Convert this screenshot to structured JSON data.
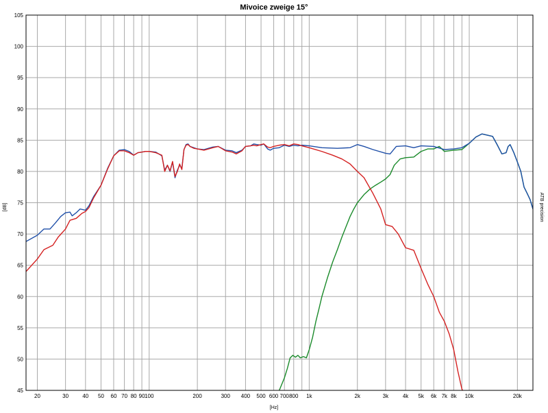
{
  "chart_data": {
    "type": "line",
    "title": "Mivoice zweige 15°",
    "xlabel": "[Hz]",
    "ylabel": "[dB]",
    "side_label": "ATB precision",
    "x_scale": "log",
    "xlim": [
      17,
      25000
    ],
    "ylim": [
      45,
      105
    ],
    "grid": true,
    "x_ticks": [
      {
        "value": 20,
        "label": "20"
      },
      {
        "value": 30,
        "label": "30"
      },
      {
        "value": 40,
        "label": "40"
      },
      {
        "value": 50,
        "label": "50"
      },
      {
        "value": 60,
        "label": "60"
      },
      {
        "value": 70,
        "label": "70"
      },
      {
        "value": 80,
        "label": "80"
      },
      {
        "value": 90,
        "label": "90"
      },
      {
        "value": 100,
        "label": "100"
      },
      {
        "value": 200,
        "label": "200"
      },
      {
        "value": 300,
        "label": "300"
      },
      {
        "value": 400,
        "label": "400"
      },
      {
        "value": 500,
        "label": "500"
      },
      {
        "value": 600,
        "label": "600"
      },
      {
        "value": 700,
        "label": "700"
      },
      {
        "value": 800,
        "label": "800"
      },
      {
        "value": 1000,
        "label": "1k"
      },
      {
        "value": 2000,
        "label": "2k"
      },
      {
        "value": 3000,
        "label": "3k"
      },
      {
        "value": 4000,
        "label": "4k"
      },
      {
        "value": 5000,
        "label": "5k"
      },
      {
        "value": 6000,
        "label": "6k"
      },
      {
        "value": 7000,
        "label": "7k"
      },
      {
        "value": 8000,
        "label": "8k"
      },
      {
        "value": 10000,
        "label": "10k"
      },
      {
        "value": 20000,
        "label": "20k"
      }
    ],
    "x_grid": [
      20,
      30,
      40,
      50,
      60,
      70,
      80,
      90,
      100,
      200,
      300,
      400,
      500,
      600,
      700,
      800,
      900,
      1000,
      2000,
      3000,
      4000,
      5000,
      6000,
      7000,
      8000,
      9000,
      10000,
      20000
    ],
    "y_ticks": [
      45,
      50,
      55,
      60,
      65,
      70,
      75,
      80,
      85,
      90,
      95,
      100,
      105
    ],
    "series": [
      {
        "color": "#1f4fa8",
        "points": [
          [
            17,
            68.8
          ],
          [
            20,
            69.8
          ],
          [
            22,
            70.8
          ],
          [
            24,
            70.8
          ],
          [
            26,
            71.8
          ],
          [
            28,
            72.8
          ],
          [
            30,
            73.4
          ],
          [
            32,
            73.5
          ],
          [
            33,
            72.9
          ],
          [
            35,
            73.4
          ],
          [
            37,
            74.0
          ],
          [
            40,
            73.8
          ],
          [
            42,
            74.5
          ],
          [
            45,
            76.0
          ],
          [
            50,
            77.8
          ],
          [
            55,
            80.5
          ],
          [
            60,
            82.5
          ],
          [
            65,
            83.4
          ],
          [
            70,
            83.5
          ],
          [
            75,
            83.2
          ],
          [
            80,
            82.6
          ],
          [
            85,
            83.0
          ],
          [
            90,
            83.1
          ],
          [
            95,
            83.2
          ],
          [
            100,
            83.2
          ],
          [
            110,
            83.1
          ],
          [
            120,
            82.5
          ],
          [
            125,
            80.2
          ],
          [
            130,
            81.0
          ],
          [
            135,
            80.0
          ],
          [
            140,
            81.5
          ],
          [
            145,
            79.0
          ],
          [
            150,
            80.2
          ],
          [
            155,
            81.0
          ],
          [
            160,
            80.5
          ],
          [
            165,
            83.5
          ],
          [
            170,
            84.3
          ],
          [
            175,
            84.4
          ],
          [
            180,
            84.0
          ],
          [
            190,
            83.8
          ],
          [
            200,
            83.6
          ],
          [
            220,
            83.5
          ],
          [
            250,
            83.9
          ],
          [
            270,
            84.0
          ],
          [
            300,
            83.4
          ],
          [
            330,
            83.3
          ],
          [
            350,
            83.0
          ],
          [
            380,
            83.4
          ],
          [
            400,
            84.0
          ],
          [
            430,
            84.1
          ],
          [
            450,
            84.4
          ],
          [
            470,
            84.3
          ],
          [
            500,
            84.2
          ],
          [
            520,
            84.4
          ],
          [
            550,
            83.6
          ],
          [
            570,
            83.4
          ],
          [
            600,
            83.7
          ],
          [
            650,
            83.8
          ],
          [
            700,
            84.2
          ],
          [
            750,
            84.0
          ],
          [
            800,
            84.2
          ],
          [
            850,
            84.1
          ],
          [
            900,
            84.2
          ],
          [
            1000,
            84.1
          ],
          [
            1200,
            83.8
          ],
          [
            1500,
            83.7
          ],
          [
            1800,
            83.8
          ],
          [
            2000,
            84.3
          ],
          [
            2200,
            84.0
          ],
          [
            2500,
            83.5
          ],
          [
            3000,
            82.9
          ],
          [
            3200,
            82.8
          ],
          [
            3500,
            84.0
          ],
          [
            4000,
            84.1
          ],
          [
            4500,
            83.8
          ],
          [
            5000,
            84.1
          ],
          [
            6000,
            84.0
          ],
          [
            7000,
            83.5
          ],
          [
            8000,
            83.6
          ],
          [
            9000,
            83.8
          ],
          [
            10000,
            84.5
          ],
          [
            11000,
            85.5
          ],
          [
            12000,
            86.0
          ],
          [
            13000,
            85.8
          ],
          [
            14000,
            85.6
          ],
          [
            15000,
            84.2
          ],
          [
            16000,
            82.8
          ],
          [
            17000,
            83.0
          ],
          [
            17500,
            84.0
          ],
          [
            18000,
            84.3
          ],
          [
            19000,
            83.0
          ],
          [
            20000,
            81.5
          ],
          [
            21000,
            80.0
          ],
          [
            22000,
            77.5
          ],
          [
            23000,
            76.5
          ],
          [
            24000,
            75.5
          ],
          [
            25000,
            74.0
          ]
        ]
      },
      {
        "color": "#d42020",
        "points": [
          [
            17,
            64.0
          ],
          [
            20,
            66.0
          ],
          [
            22,
            67.5
          ],
          [
            25,
            68.2
          ],
          [
            27,
            69.5
          ],
          [
            30,
            70.8
          ],
          [
            32,
            72.2
          ],
          [
            35,
            72.5
          ],
          [
            38,
            73.3
          ],
          [
            40,
            73.6
          ],
          [
            42,
            74.2
          ],
          [
            45,
            75.8
          ],
          [
            50,
            77.8
          ],
          [
            55,
            80.4
          ],
          [
            60,
            82.5
          ],
          [
            65,
            83.3
          ],
          [
            70,
            83.3
          ],
          [
            75,
            83.0
          ],
          [
            80,
            82.6
          ],
          [
            85,
            83.0
          ],
          [
            90,
            83.1
          ],
          [
            95,
            83.2
          ],
          [
            100,
            83.2
          ],
          [
            110,
            83.0
          ],
          [
            120,
            82.6
          ],
          [
            125,
            80.0
          ],
          [
            130,
            81.0
          ],
          [
            135,
            80.1
          ],
          [
            140,
            81.6
          ],
          [
            145,
            79.2
          ],
          [
            150,
            80.0
          ],
          [
            155,
            81.2
          ],
          [
            160,
            80.3
          ],
          [
            165,
            83.5
          ],
          [
            170,
            84.2
          ],
          [
            175,
            84.3
          ],
          [
            180,
            84.0
          ],
          [
            190,
            83.7
          ],
          [
            200,
            83.6
          ],
          [
            220,
            83.4
          ],
          [
            250,
            83.8
          ],
          [
            270,
            84.0
          ],
          [
            300,
            83.3
          ],
          [
            330,
            83.1
          ],
          [
            350,
            82.8
          ],
          [
            380,
            83.3
          ],
          [
            400,
            84.0
          ],
          [
            430,
            84.1
          ],
          [
            450,
            84.2
          ],
          [
            470,
            84.1
          ],
          [
            500,
            84.3
          ],
          [
            520,
            84.4
          ],
          [
            550,
            83.9
          ],
          [
            570,
            83.8
          ],
          [
            600,
            84.0
          ],
          [
            650,
            84.2
          ],
          [
            700,
            84.3
          ],
          [
            750,
            84.1
          ],
          [
            800,
            84.4
          ],
          [
            850,
            84.3
          ],
          [
            900,
            84.1
          ],
          [
            1000,
            83.8
          ],
          [
            1200,
            83.2
          ],
          [
            1400,
            82.6
          ],
          [
            1600,
            82.0
          ],
          [
            1800,
            81.2
          ],
          [
            2000,
            80.0
          ],
          [
            2200,
            79.0
          ],
          [
            2500,
            76.5
          ],
          [
            2800,
            74.0
          ],
          [
            3000,
            71.5
          ],
          [
            3300,
            71.2
          ],
          [
            3600,
            70.0
          ],
          [
            4000,
            67.8
          ],
          [
            4500,
            67.4
          ],
          [
            5000,
            64.5
          ],
          [
            5500,
            62.0
          ],
          [
            6000,
            60.0
          ],
          [
            6500,
            57.5
          ],
          [
            7000,
            56.0
          ],
          [
            7500,
            54.0
          ],
          [
            8000,
            51.5
          ],
          [
            8500,
            48.0
          ],
          [
            9000,
            45.2
          ],
          [
            9100,
            45.0
          ]
        ]
      },
      {
        "color": "#1a8a2a",
        "points": [
          [
            650,
            45.0
          ],
          [
            700,
            47.0
          ],
          [
            730,
            48.5
          ],
          [
            760,
            50.2
          ],
          [
            790,
            50.6
          ],
          [
            820,
            50.3
          ],
          [
            850,
            50.6
          ],
          [
            880,
            50.2
          ],
          [
            920,
            50.4
          ],
          [
            960,
            50.2
          ],
          [
            1000,
            51.5
          ],
          [
            1050,
            53.5
          ],
          [
            1100,
            56.0
          ],
          [
            1150,
            58.0
          ],
          [
            1200,
            60.0
          ],
          [
            1300,
            63.0
          ],
          [
            1400,
            65.5
          ],
          [
            1500,
            67.5
          ],
          [
            1600,
            69.5
          ],
          [
            1700,
            71.2
          ],
          [
            1800,
            72.8
          ],
          [
            1900,
            74.0
          ],
          [
            2000,
            75.0
          ],
          [
            2200,
            76.3
          ],
          [
            2400,
            77.2
          ],
          [
            2600,
            77.8
          ],
          [
            2800,
            78.3
          ],
          [
            3000,
            78.8
          ],
          [
            3200,
            79.5
          ],
          [
            3400,
            81.0
          ],
          [
            3700,
            82.0
          ],
          [
            4000,
            82.2
          ],
          [
            4500,
            82.3
          ],
          [
            5000,
            83.2
          ],
          [
            5500,
            83.6
          ],
          [
            6000,
            83.6
          ],
          [
            6500,
            84.0
          ],
          [
            7000,
            83.2
          ],
          [
            8000,
            83.4
          ],
          [
            9000,
            83.5
          ],
          [
            10000,
            84.5
          ],
          [
            11000,
            85.5
          ],
          [
            12000,
            86.0
          ],
          [
            13000,
            85.8
          ],
          [
            14000,
            85.6
          ],
          [
            15000,
            84.2
          ],
          [
            16000,
            82.8
          ],
          [
            17000,
            83.0
          ],
          [
            17500,
            84.0
          ],
          [
            18000,
            84.3
          ],
          [
            19000,
            83.0
          ],
          [
            20000,
            81.5
          ],
          [
            21000,
            80.0
          ],
          [
            22000,
            77.5
          ],
          [
            23000,
            76.5
          ],
          [
            24000,
            75.5
          ],
          [
            25000,
            74.0
          ]
        ]
      }
    ]
  }
}
